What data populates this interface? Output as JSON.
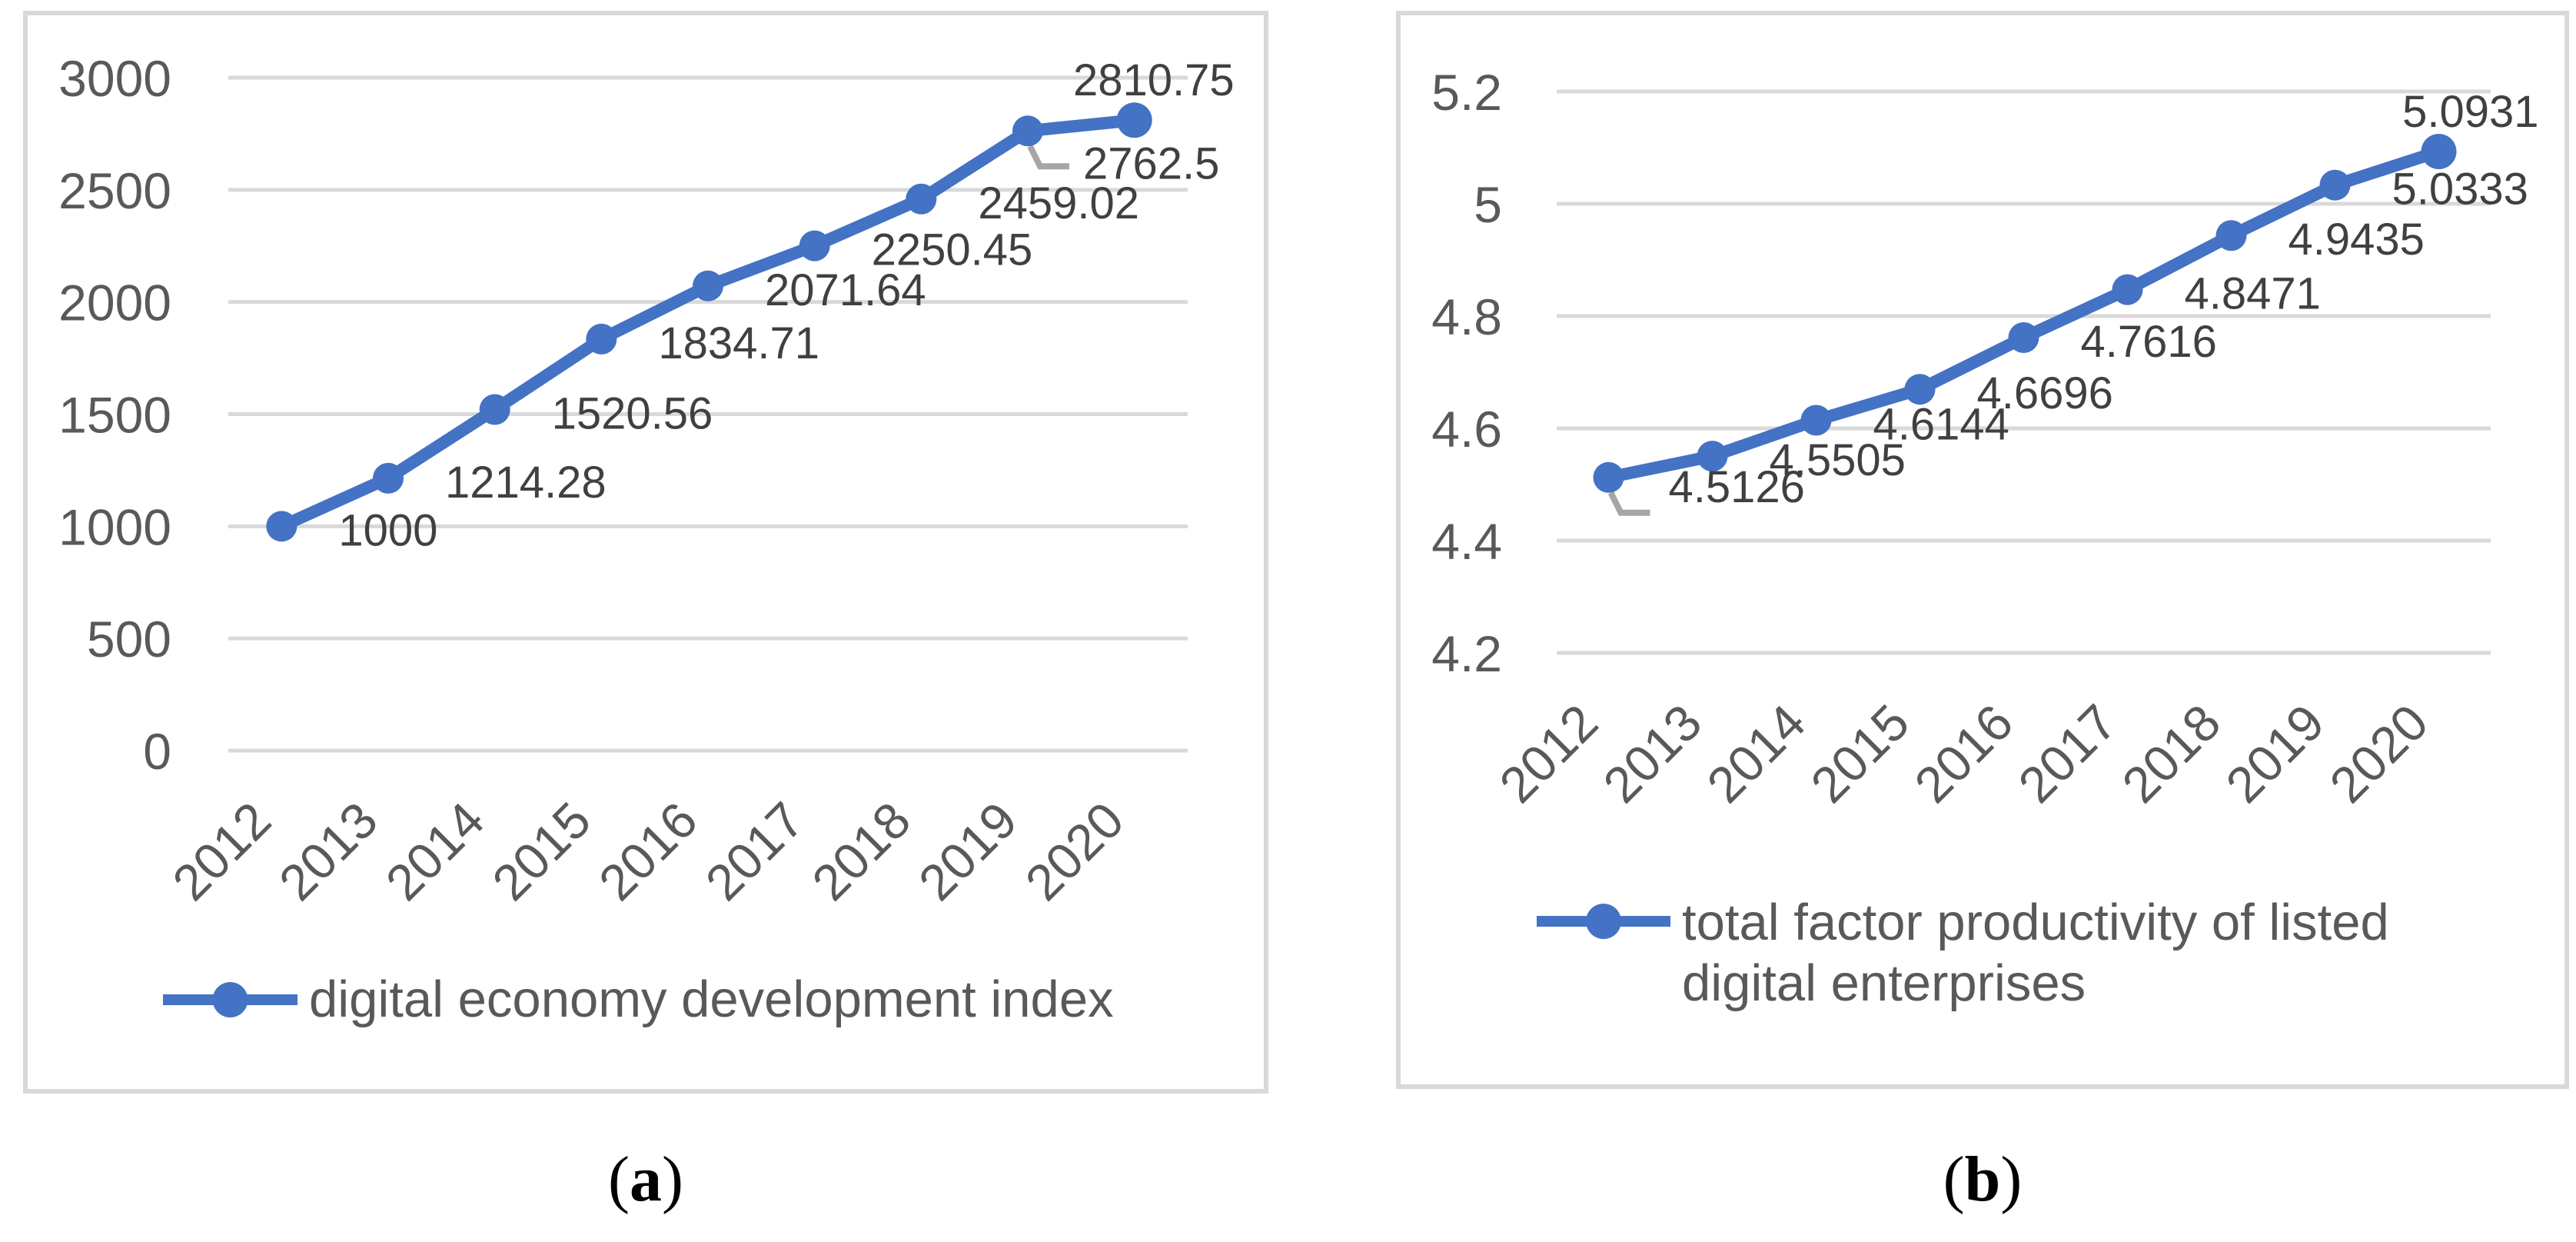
{
  "colors": {
    "accent": "#4472C4",
    "grid": "#D9D9D9",
    "panel_border": "#D9D9D9",
    "axis_text": "#595959",
    "data_label_text": "#404040",
    "legend_text": "#595959",
    "leader_line": "#A6A6A6",
    "caption_text": "#000000"
  },
  "chart_data": [
    {
      "type": "line",
      "title": "",
      "xlabel": "",
      "ylabel": "",
      "caption_open": "(",
      "caption_letter": "a",
      "caption_close": ")",
      "categories": [
        "2012",
        "2013",
        "2014",
        "2015",
        "2016",
        "2017",
        "2018",
        "2019",
        "2020"
      ],
      "series": [
        {
          "name": "digital economy development index",
          "color": "#4472C4",
          "values": [
            1000,
            1214.28,
            1520.56,
            1834.71,
            2071.64,
            2250.45,
            2459.02,
            2762.5,
            2810.75
          ],
          "data_labels": [
            "1000",
            "1214.28",
            "1520.56",
            "1834.71",
            "2071.64",
            "2250.45",
            "2459.02",
            "2762.5",
            "2810.75"
          ]
        }
      ],
      "ylim": [
        0,
        3000
      ],
      "ytick_interval": 500,
      "ytick_labels": [
        "3000",
        "2500",
        "2000",
        "1500",
        "1000",
        "500",
        "0"
      ],
      "grid": true,
      "x_tick_rotation_deg": -45,
      "legend_position": "bottom",
      "legend_lines": [
        "digital economy development index"
      ],
      "data_label_placements": [
        "right",
        "right",
        "right",
        "right",
        "right",
        "right",
        "right",
        "below-far",
        "above-end"
      ],
      "leader_line_points": [
        7
      ]
    },
    {
      "type": "line",
      "title": "",
      "xlabel": "",
      "ylabel": "",
      "caption_open": "(",
      "caption_letter": "b",
      "caption_close": ")",
      "categories": [
        "2012",
        "2013",
        "2014",
        "2015",
        "2016",
        "2017",
        "2018",
        "2019",
        "2020"
      ],
      "series": [
        {
          "name": "total factor productivity of listed digital enterprises",
          "color": "#4472C4",
          "values": [
            4.5126,
            4.5505,
            4.6144,
            4.6696,
            4.7616,
            4.8471,
            4.9435,
            5.0333,
            5.0931
          ],
          "data_labels": [
            "4.5126",
            "4.5505",
            "4.6144",
            "4.6696",
            "4.7616",
            "4.8471",
            "4.9435",
            "5.0333",
            "5.0931"
          ]
        }
      ],
      "ylim": [
        4.2,
        5.2
      ],
      "ytick_interval": 0.2,
      "ytick_labels": [
        "5.2",
        "5",
        "4.8",
        "4.6",
        "4.4",
        "4.2"
      ],
      "grid": true,
      "x_tick_rotation_deg": -45,
      "legend_position": "bottom",
      "legend_lines": [
        "total factor productivity of listed",
        "digital enterprises"
      ],
      "data_label_placements": [
        "leader-right",
        "right",
        "right",
        "right",
        "right",
        "right",
        "right",
        "right",
        "above-end"
      ],
      "leader_line_points": [
        0
      ]
    }
  ]
}
